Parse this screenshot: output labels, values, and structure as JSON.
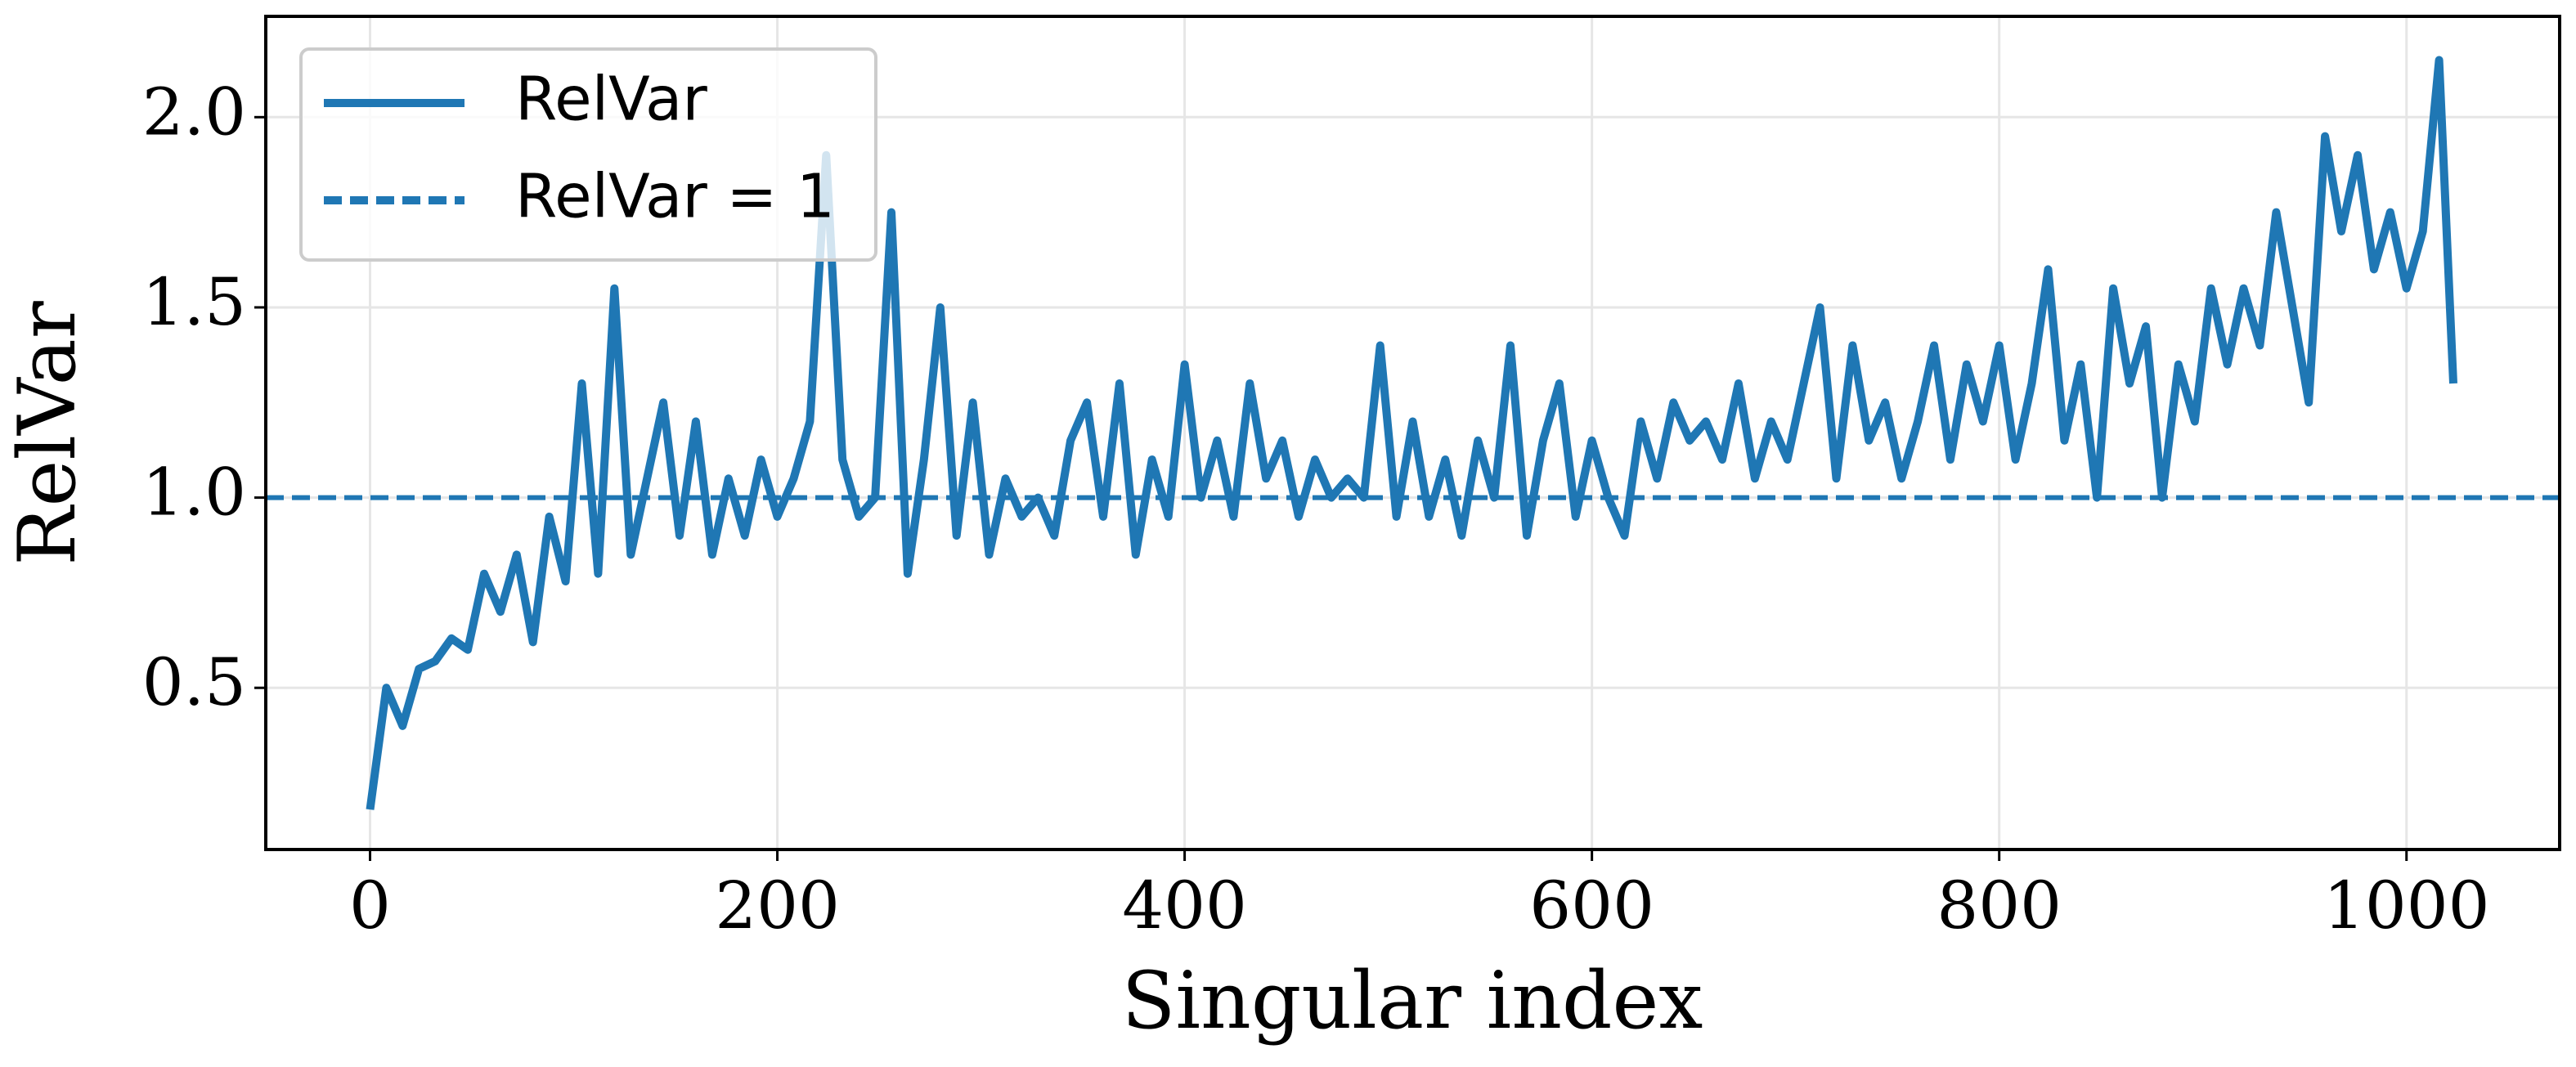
{
  "chart_data": {
    "type": "line",
    "xlabel": "Singular index",
    "ylabel": "RelVar",
    "x": [
      0,
      8,
      16,
      24,
      32,
      40,
      48,
      56,
      64,
      72,
      80,
      88,
      96,
      104,
      112,
      120,
      128,
      136,
      144,
      152,
      160,
      168,
      176,
      184,
      192,
      200,
      208,
      216,
      224,
      232,
      240,
      248,
      256,
      264,
      272,
      280,
      288,
      296,
      304,
      312,
      320,
      328,
      336,
      344,
      352,
      360,
      368,
      376,
      384,
      392,
      400,
      408,
      416,
      424,
      432,
      440,
      448,
      456,
      464,
      472,
      480,
      488,
      496,
      504,
      512,
      520,
      528,
      536,
      544,
      552,
      560,
      568,
      576,
      584,
      592,
      600,
      608,
      616,
      624,
      632,
      640,
      648,
      656,
      664,
      672,
      680,
      688,
      696,
      704,
      712,
      720,
      728,
      736,
      744,
      752,
      760,
      768,
      776,
      784,
      792,
      800,
      808,
      816,
      824,
      832,
      840,
      848,
      856,
      864,
      872,
      880,
      888,
      896,
      904,
      912,
      920,
      928,
      936,
      944,
      952,
      960,
      968,
      976,
      984,
      992,
      1000,
      1008,
      1016,
      1023
    ],
    "series": [
      {
        "name": "RelVar",
        "color": "#1f77b4",
        "values": [
          0.18,
          0.5,
          0.4,
          0.55,
          0.57,
          0.63,
          0.6,
          0.8,
          0.7,
          0.85,
          0.62,
          0.95,
          0.78,
          1.3,
          0.8,
          1.55,
          0.85,
          1.05,
          1.25,
          0.9,
          1.2,
          0.85,
          1.05,
          0.9,
          1.1,
          0.95,
          1.05,
          1.2,
          1.9,
          1.1,
          0.95,
          1.0,
          1.75,
          0.8,
          1.1,
          1.5,
          0.9,
          1.25,
          0.85,
          1.05,
          0.95,
          1.0,
          0.9,
          1.15,
          1.25,
          0.95,
          1.3,
          0.85,
          1.1,
          0.95,
          1.35,
          1.0,
          1.15,
          0.95,
          1.3,
          1.05,
          1.15,
          0.95,
          1.1,
          1.0,
          1.05,
          1.0,
          1.4,
          0.95,
          1.2,
          0.95,
          1.1,
          0.9,
          1.15,
          1.0,
          1.4,
          0.9,
          1.15,
          1.3,
          0.95,
          1.15,
          1.0,
          0.9,
          1.2,
          1.05,
          1.25,
          1.15,
          1.2,
          1.1,
          1.3,
          1.05,
          1.2,
          1.1,
          1.3,
          1.5,
          1.05,
          1.4,
          1.15,
          1.25,
          1.05,
          1.2,
          1.4,
          1.1,
          1.35,
          1.2,
          1.4,
          1.1,
          1.3,
          1.6,
          1.15,
          1.35,
          1.0,
          1.55,
          1.3,
          1.45,
          1.0,
          1.35,
          1.2,
          1.55,
          1.35,
          1.55,
          1.4,
          1.75,
          1.5,
          1.25,
          1.95,
          1.7,
          1.9,
          1.6,
          1.75,
          1.55,
          1.7,
          2.15,
          1.3
        ]
      }
    ],
    "reference_lines": [
      {
        "name": "RelVar = 1",
        "value": 1,
        "color": "#1f77b4",
        "style": "dashed"
      }
    ],
    "xlim": [
      -51.2,
      1075.2
    ],
    "xticks": [
      0,
      200,
      400,
      600,
      800,
      1000
    ],
    "ylim": [
      0.075,
      2.265
    ],
    "yticks": [
      0.5,
      {
        "value": 1,
        "label": "1.0"
      },
      1.5,
      {
        "value": 2,
        "label": "2.0"
      }
    ],
    "grid": true,
    "legend": "upper left"
  }
}
